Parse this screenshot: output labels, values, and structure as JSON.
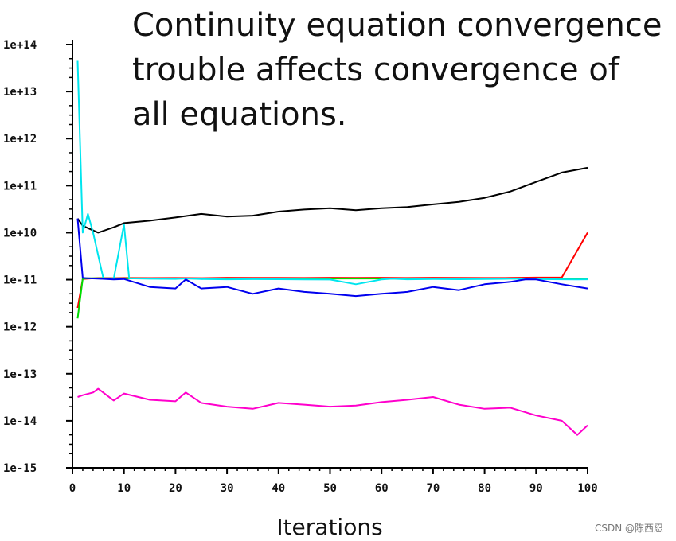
{
  "chart_data": {
    "type": "line",
    "title_lines": [
      "Continuity equation convergence",
      "trouble affects convergence of",
      "all equations."
    ],
    "xlabel": "Iterations",
    "ylabel": "",
    "xlim": [
      0,
      100
    ],
    "ylim_log10": [
      -15,
      14
    ],
    "log_scale_y": true,
    "x_ticks": [
      0,
      10,
      20,
      30,
      40,
      50,
      60,
      70,
      80,
      90,
      100
    ],
    "x_tick_labels": [
      "0",
      "10",
      "20",
      "30",
      "40",
      "50",
      "60",
      "70",
      "80",
      "90",
      "100"
    ],
    "y_ticks_log10": [
      14,
      13,
      12,
      11,
      10,
      -11,
      -12,
      -13,
      -14,
      -15
    ],
    "y_tick_labels": [
      "1e+14",
      "1e+13",
      "1e+12",
      "1e+11",
      "1e+10",
      "1e-11",
      "1e-12",
      "1e-13",
      "1e-14",
      "1e-15"
    ],
    "series": [
      {
        "color": "#000000",
        "x": [
          1,
          2,
          5,
          8,
          10,
          15,
          20,
          25,
          30,
          35,
          40,
          45,
          50,
          55,
          60,
          65,
          70,
          75,
          80,
          85,
          90,
          95,
          100
        ],
        "y": [
          20000000000.0,
          14000000000.0,
          10000000000.0,
          13000000000.0,
          16000000000.0,
          18000000000.0,
          21000000000.0,
          25000000000.0,
          22000000000.0,
          23000000000.0,
          28000000000.0,
          31000000000.0,
          33000000000.0,
          30000000000.0,
          33000000000.0,
          35000000000.0,
          40000000000.0,
          45000000000.0,
          55000000000.0,
          75000000000.0,
          120000000000.0,
          190000000000.0,
          240000000000.0
        ]
      },
      {
        "color": "#ff0000",
        "x": [
          1,
          2,
          3,
          4,
          5,
          8,
          10,
          15,
          20,
          25,
          30,
          35,
          40,
          45,
          50,
          55,
          60,
          65,
          70,
          75,
          80,
          85,
          90,
          95,
          100
        ],
        "y": [
          2.5e-12,
          2e-11,
          3e-11,
          4e-11,
          5.5e-11,
          5e-11,
          6e-11,
          5.5e-11,
          6e-11,
          5e-11,
          7.5e-11,
          6.5e-11,
          7e-11,
          6e-11,
          7.5e-11,
          6.5e-11,
          7.5e-11,
          6e-11,
          7.5e-11,
          6.5e-11,
          6e-11,
          6.5e-11,
          8.5e-11,
          9.5e-11,
          10000000000.0
        ]
      },
      {
        "color": "#00dd00",
        "x": [
          1,
          2,
          3,
          4,
          6,
          8,
          10,
          15,
          20,
          25,
          30,
          35,
          40,
          45,
          50,
          55,
          60,
          65,
          70,
          75,
          80,
          85,
          90,
          95,
          100
        ],
        "y": [
          1.5e-12,
          3e-11,
          4e-11,
          4.5e-11,
          4.2e-11,
          4e-11,
          4e-11,
          3.6e-11,
          3.5e-11,
          3.3e-11,
          3.5e-11,
          3.3e-11,
          3.4e-11,
          3.3e-11,
          3.3e-11,
          3.2e-11,
          3.3e-11,
          3.1e-11,
          3.2e-11,
          3.1e-11,
          3.1e-11,
          3.5e-11,
          3.3e-11,
          3.1e-11,
          3.1e-11
        ]
      },
      {
        "color": "#00e5ee",
        "x": [
          1,
          2,
          3,
          4,
          6,
          8,
          10,
          11,
          15,
          20,
          22,
          25,
          30,
          35,
          40,
          45,
          50,
          55,
          60,
          62,
          65,
          70,
          75,
          80,
          85,
          90,
          95,
          98,
          100
        ],
        "y": [
          45000000000000.0,
          10000000000.0,
          25000000000.0,
          10000000000.0,
          4e-11,
          2.5e-11,
          15000000000.0,
          4e-11,
          2.5e-11,
          2.2e-11,
          3.5e-11,
          1.8e-11,
          1.5e-11,
          1.7e-11,
          1.6e-11,
          1.2e-11,
          1.1e-11,
          8e-12,
          1.2e-11,
          2.5e-11,
          1.5e-11,
          1.8e-11,
          1.6e-11,
          1.8e-11,
          2.5e-11,
          2e-11,
          1.5e-11,
          1.2e-11,
          1.4e-11
        ]
      },
      {
        "color": "#0000ee",
        "x": [
          1,
          2,
          3,
          5,
          8,
          10,
          15,
          20,
          22,
          25,
          30,
          35,
          40,
          45,
          50,
          55,
          60,
          65,
          70,
          75,
          80,
          85,
          88,
          90,
          95,
          100
        ],
        "y": [
          20000000000.0,
          6e-11,
          4.5e-11,
          3e-11,
          1.2e-11,
          2e-11,
          7e-12,
          6.5e-12,
          1.2e-11,
          6.5e-12,
          7e-12,
          5e-12,
          6.5e-12,
          5.5e-12,
          5e-12,
          4.5e-12,
          5e-12,
          5.5e-12,
          7e-12,
          6e-12,
          8e-12,
          9e-12,
          1.4e-11,
          1.2e-11,
          8e-12,
          6.5e-12
        ]
      },
      {
        "color": "#ff00cc",
        "x": [
          1,
          2,
          4,
          5,
          8,
          10,
          15,
          20,
          22,
          25,
          30,
          35,
          40,
          45,
          50,
          55,
          60,
          65,
          70,
          75,
          80,
          85,
          90,
          95,
          98,
          100
        ],
        "y": [
          3.2e-14,
          3.5e-14,
          4e-14,
          4.8e-14,
          2.7e-14,
          3.8e-14,
          2.8e-14,
          2.6e-14,
          4e-14,
          2.4e-14,
          2e-14,
          1.8e-14,
          2.4e-14,
          2.2e-14,
          2e-14,
          2.1e-14,
          2.5e-14,
          2.8e-14,
          3.2e-14,
          2.2e-14,
          1.8e-14,
          1.9e-14,
          1.3e-14,
          1e-14,
          5e-15,
          8e-15
        ]
      }
    ]
  },
  "watermark": "CSDN @陈西忍"
}
